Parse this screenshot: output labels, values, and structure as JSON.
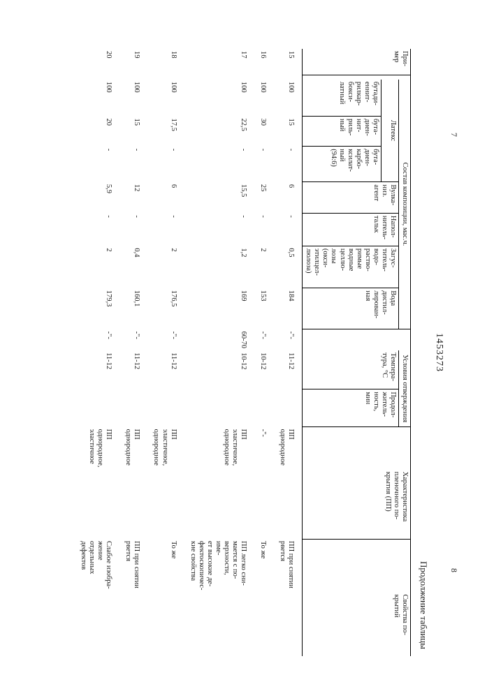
{
  "header": {
    "page_left": "7",
    "doc_number": "1453273",
    "page_right": "8",
    "caption": "Продолжение таблицы"
  },
  "columns": {
    "primer": "При-\nмер",
    "comp_group": "Состав композиции, мас.ч.",
    "latex_group": "Латекс",
    "latex1": "бутади-\nеннит-\nрилкар-\nбокси-\nлатный",
    "latex2": "бута-\nдиен-\nнит-\nриль-\nный",
    "latex3": "бута-\nдиен-\nкарбо-\nксилат-\nный\n(94:6)",
    "vulcan": "Вулка-\nниз.\nагент",
    "filler": "Напол-\nнитель-\nтальк",
    "thick": "Загус-\nтитель-\nводо-\nраство-\nримые\nводные\nцеллю-\nлозы\n(окси-\nэтилцел-\nлюлоза)",
    "water": "Вода\nдистил-\nлирован-\nная",
    "cure_group": "Условия отверждения",
    "temp": "Темпера-\nтура, °С",
    "time": "Продол-\nжитель-\nность,\nмин",
    "char": "Характеристика\nпленочного по-\nкрытия (ПП)",
    "prop": "Свойства по-\nкрытий"
  },
  "rows": [
    {
      "n": "15",
      "l1": "100",
      "l2": "15",
      "l3": "-",
      "v": "6",
      "f": "-",
      "t": "0,5",
      "w": "184",
      "temp": "-\"-",
      "time": "11-12",
      "char": "ПП однородное",
      "prop": "ПП при снятии\nрвется"
    },
    {
      "n": "16",
      "l1": "100",
      "l2": "30",
      "l3": "-",
      "v": "25",
      "f": "-",
      "t": "2",
      "w": "153",
      "temp": "-\"-",
      "time": "10-12",
      "char": "-\"-",
      "prop": "То же"
    },
    {
      "n": "17",
      "l1": "100",
      "l2": "22,5",
      "l3": "-",
      "v": "15,5",
      "f": "-",
      "t": "1,2",
      "w": "169",
      "temp": "60-70",
      "time": "10-12",
      "char": "ПП эластичное,\nоднородное",
      "prop": "ПП легко сни-\nмается с по-\nверхности, име-\nет высокие де-\nфектоскопичес-\nкие свойства"
    },
    {
      "n": "18",
      "l1": "100",
      "l2": "17,5",
      "l3": "-",
      "v": "6",
      "f": "-",
      "t": "2",
      "w": "176,5",
      "temp": "-\"-",
      "time": "11-12",
      "char": "ПП эластичное,\nоднородное",
      "prop": "То же"
    },
    {
      "n": "19",
      "l1": "100",
      "l2": "15",
      "l3": "-",
      "v": "12",
      "f": "-",
      "t": "0,4",
      "w": "160,1",
      "temp": "-\"-",
      "time": "11-12",
      "char": "ПП однородное",
      "prop": "ПП при снятии\nрвется"
    },
    {
      "n": "20",
      "l1": "100",
      "l2": "20",
      "l3": "-",
      "v": "5,9",
      "f": "-",
      "t": "2",
      "w": "179,3",
      "temp": "-\"-",
      "time": "11-12",
      "char": "ПП однородное,\nэластичное",
      "prop": "Слабое изобра-\nжение отдельных\nдефектов"
    }
  ]
}
